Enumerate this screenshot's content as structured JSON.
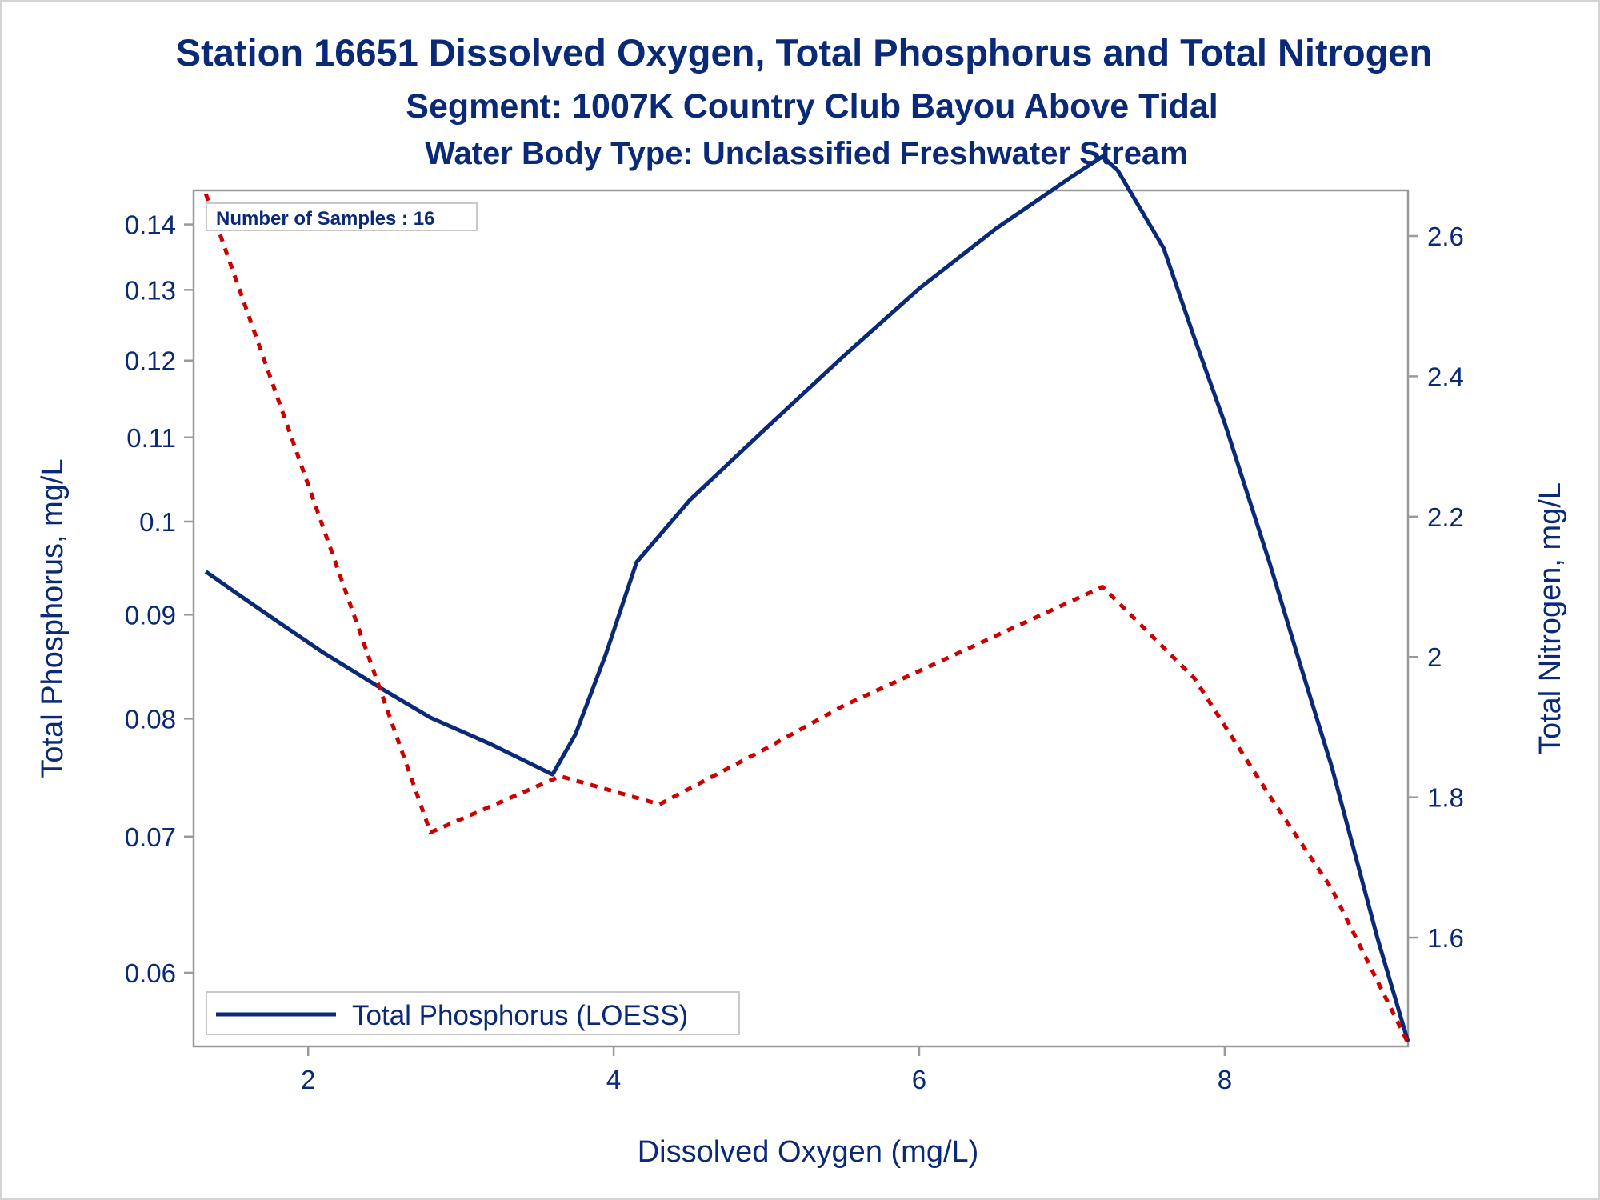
{
  "titles": {
    "line1": "Station 16651  Dissolved Oxygen, Total Phosphorus and Total Nitrogen",
    "line2": "Segment: 1007K  Country Club Bayou Above Tidal",
    "line3": "Water Body Type: Unclassified Freshwater Stream"
  },
  "inset": {
    "label": "Number of Samples : 16"
  },
  "legend": {
    "label": "Total Phosphorus (LOESS)"
  },
  "colors": {
    "text": "#0a2a78",
    "phosphorus": "#0a2a78",
    "nitrogen": "#cc0000",
    "frame": "#9a9a9a"
  },
  "chart_data": {
    "type": "line",
    "xlabel": "Dissolved Oxygen (mg/L)",
    "ylabel": "Total Phosphorus, mg/L",
    "y2label": "Total Nitrogen, mg/L",
    "xlim": [
      1.25,
      9.2
    ],
    "ylim": [
      0.0552,
      0.1455
    ],
    "y_scale": "log",
    "y2lim": [
      1.445,
      2.665
    ],
    "xticks": [
      "2",
      "4",
      "6",
      "8"
    ],
    "yticks": [
      "0.14",
      "0.13",
      "0.12",
      "0.11",
      "0.1",
      "0.09",
      "0.08",
      "0.07",
      "0.06"
    ],
    "y2ticks": [
      "2.6",
      "2.4",
      "2.2",
      "2",
      "1.8",
      "1.6"
    ],
    "grid": false,
    "legend_position": "bottom-left",
    "series": [
      {
        "name": "Total Phosphorus (LOESS)",
        "axis": "left",
        "style": "solid",
        "x": [
          1.33,
          1.55,
          1.8,
          2.1,
          2.5,
          2.8,
          3.2,
          3.6,
          3.75,
          3.95,
          4.15,
          4.5,
          5.0,
          5.5,
          6.0,
          6.5,
          7.0,
          7.2,
          7.3,
          7.6,
          7.8,
          8.0,
          8.3,
          8.5,
          8.7,
          9.0,
          9.2
        ],
        "values": [
          0.0945,
          0.092,
          0.0893,
          0.0862,
          0.0826,
          0.0801,
          0.0777,
          0.0751,
          0.0786,
          0.0861,
          0.0955,
          0.1025,
          0.1112,
          0.1205,
          0.1302,
          0.1393,
          0.1478,
          0.1512,
          0.1488,
          0.1363,
          0.1232,
          0.1118,
          0.0951,
          0.0848,
          0.0758,
          0.0624,
          0.0555
        ]
      },
      {
        "name": "",
        "axis": "right",
        "style": "dashed",
        "x": [
          1.33,
          2.8,
          3.65,
          4.3,
          5.0,
          5.5,
          6.0,
          6.5,
          7.0,
          7.2,
          7.8,
          8.3,
          8.7,
          9.2
        ],
        "values": [
          2.66,
          1.75,
          1.83,
          1.79,
          1.87,
          1.93,
          1.98,
          2.03,
          2.08,
          2.1,
          1.97,
          1.8,
          1.67,
          1.45
        ]
      }
    ]
  }
}
